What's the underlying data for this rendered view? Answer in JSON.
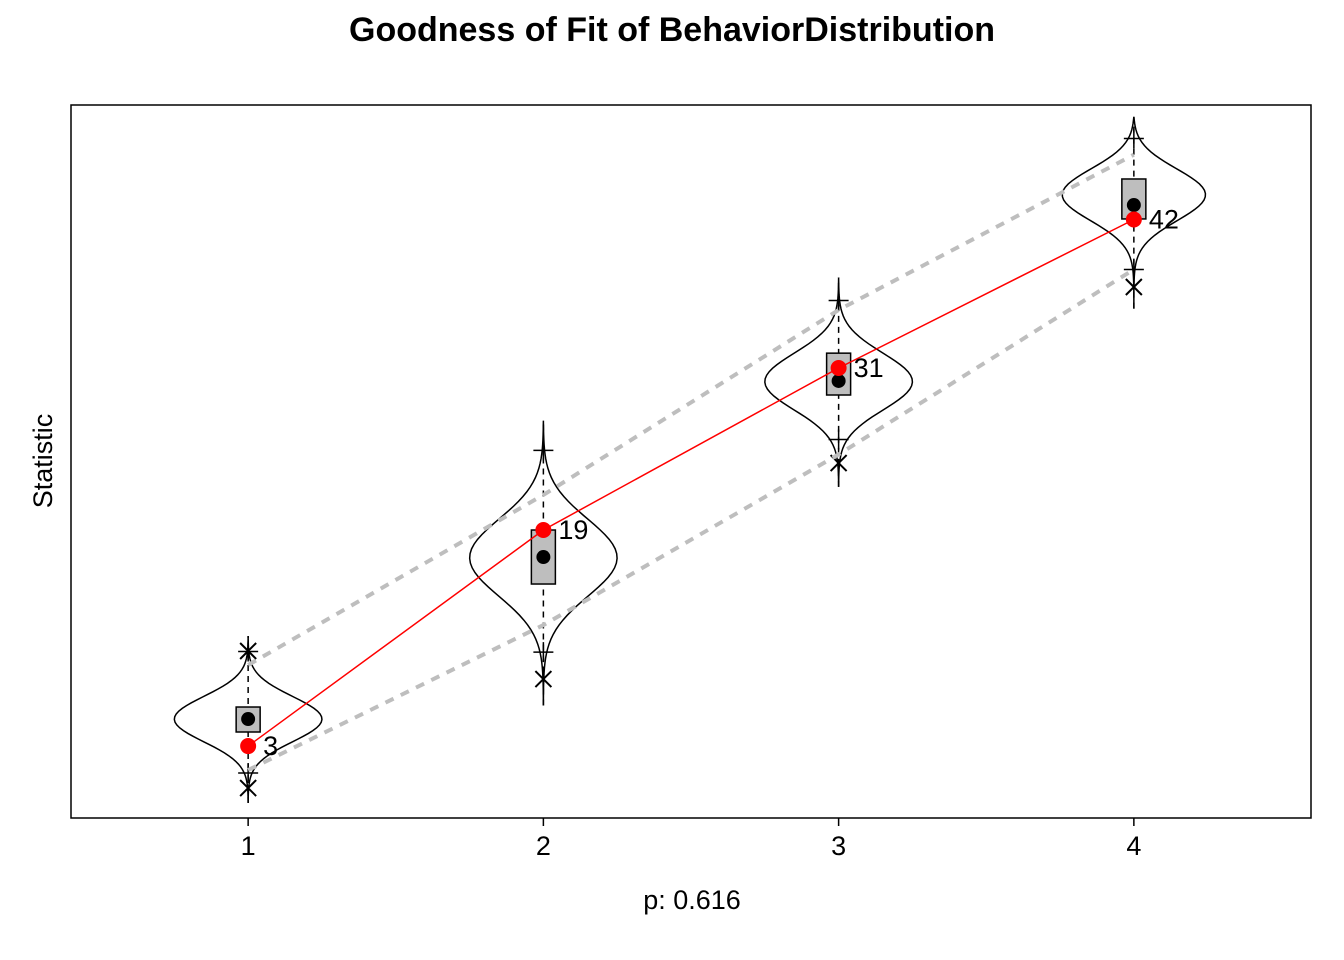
{
  "chart_data": {
    "type": "violin",
    "title": "Goodness of Fit of BehaviorDistribution",
    "xlabel": "p: 0.616",
    "ylabel": "Statistic",
    "x": [
      1,
      2,
      3,
      4
    ],
    "xlim": [
      0.4,
      4.6
    ],
    "xticks": [
      1,
      2,
      3,
      4
    ],
    "ylim": [
      -2.33,
      50.48
    ],
    "observed": {
      "color": "#ff0000",
      "values": [
        3,
        19,
        31,
        42
      ]
    },
    "bounds": {
      "color": "#bebebe",
      "lower": [
        1.22,
        11.96,
        24.6,
        38.3
      ],
      "upper": [
        9.0,
        21.6,
        35.3,
        46.8
      ]
    },
    "mean": [
      5.0,
      17.0,
      30.04,
      43.07
    ],
    "q1": [
      4.04,
      15.0,
      29.0,
      42.04
    ],
    "q3": [
      5.89,
      19.0,
      32.1,
      45.0
    ],
    "whisker_low": [
      1.0,
      9.96,
      25.7,
      38.3
    ],
    "whisker_high": [
      10.0,
      24.9,
      36.0,
      48.0
    ],
    "outliers": [
      [
        -0.11,
        10.04
      ],
      [
        7.96
      ],
      [
        23.96
      ],
      [
        37.0
      ]
    ],
    "violin_low": [
      -1.22,
      6.0,
      22.2,
      35.4
    ],
    "violin_high": [
      11.15,
      27.1,
      37.7,
      49.6
    ],
    "violin_peak": [
      5.0,
      17.0,
      30.0,
      44.0
    ],
    "violin_width": 0.25,
    "box_color": "#bebebe"
  }
}
